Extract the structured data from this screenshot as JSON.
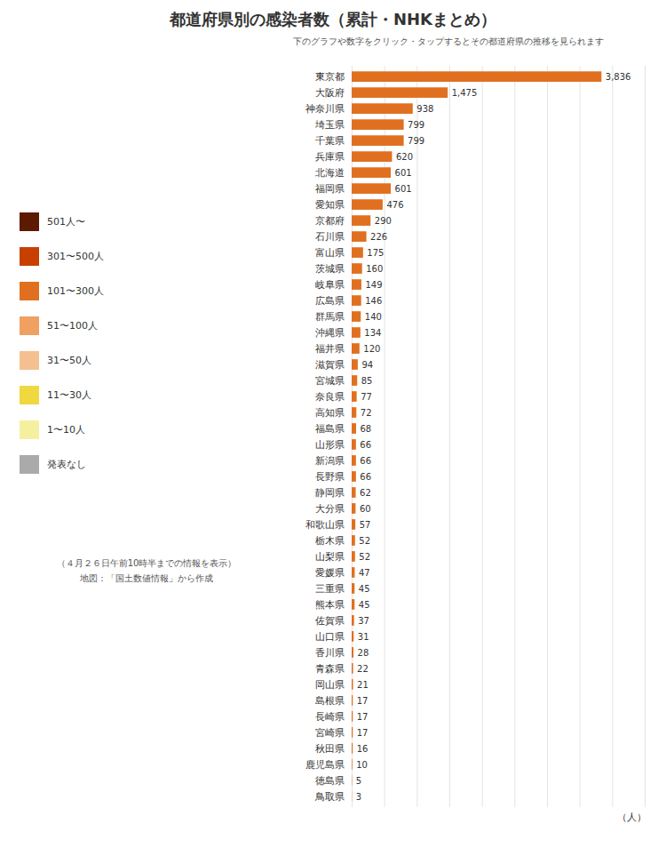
{
  "chart_data": {
    "type": "bar",
    "orientation": "horizontal",
    "title": "都道府県別の感染者数（累計・NHKまとめ）",
    "subtitle": "下のグラフや数字をクリック・タップするとその都道府県の推移を見られます",
    "annotations": [
      "（４月２６日午前10時半までの情報を表示）",
      "地図：「国土数値情報」から作成"
    ],
    "xlabel": "（人）",
    "categories": [
      "東京都",
      "大阪府",
      "神奈川県",
      "埼玉県",
      "千葉県",
      "兵庫県",
      "北海道",
      "福岡県",
      "愛知県",
      "京都府",
      "石川県",
      "富山県",
      "茨城県",
      "岐阜県",
      "広島県",
      "群馬県",
      "沖縄県",
      "福井県",
      "滋賀県",
      "宮城県",
      "奈良県",
      "高知県",
      "福島県",
      "山形県",
      "新潟県",
      "長野県",
      "静岡県",
      "大分県",
      "和歌山県",
      "栃木県",
      "山梨県",
      "愛媛県",
      "三重県",
      "熊本県",
      "佐賀県",
      "山口県",
      "香川県",
      "青森県",
      "岡山県",
      "島根県",
      "長崎県",
      "宮崎県",
      "秋田県",
      "鹿児島県",
      "徳島県",
      "鳥取県"
    ],
    "values": [
      3836,
      1475,
      938,
      799,
      799,
      620,
      601,
      601,
      476,
      290,
      226,
      175,
      160,
      149,
      146,
      140,
      134,
      120,
      94,
      85,
      77,
      72,
      68,
      66,
      66,
      66,
      62,
      60,
      57,
      52,
      52,
      47,
      45,
      45,
      37,
      31,
      28,
      22,
      21,
      17,
      17,
      17,
      16,
      10,
      5,
      3
    ],
    "value_labels": [
      "3,836",
      "1,475",
      "938",
      "799",
      "799",
      "620",
      "601",
      "601",
      "476",
      "290",
      "226",
      "175",
      "160",
      "149",
      "146",
      "140",
      "134",
      "120",
      "94",
      "85",
      "77",
      "72",
      "68",
      "66",
      "66",
      "66",
      "62",
      "60",
      "57",
      "52",
      "52",
      "47",
      "45",
      "45",
      "37",
      "31",
      "28",
      "22",
      "21",
      "17",
      "17",
      "17",
      "16",
      "10",
      "5",
      "3"
    ],
    "data_labels": true,
    "color": "#E07020",
    "xlim": [
      0,
      4500
    ],
    "xticks": [
      0,
      500,
      1000,
      1500,
      2000,
      2500,
      3000,
      3500,
      4000,
      4500
    ],
    "grid": true,
    "tick_labels": "y",
    "legend_items": [
      {
        "label": "501人〜",
        "color": "#5C1A00"
      },
      {
        "label": "301〜500人",
        "color": "#C84000"
      },
      {
        "label": "101〜300人",
        "color": "#E07020"
      },
      {
        "label": "51〜100人",
        "color": "#F0A060"
      },
      {
        "label": "31〜50人",
        "color": "#F5C090"
      },
      {
        "label": "11〜30人",
        "color": "#F0D840"
      },
      {
        "label": "1〜10人",
        "color": "#F5F0A0"
      },
      {
        "label": "発表なし",
        "color": "#AAAAAA"
      }
    ]
  }
}
